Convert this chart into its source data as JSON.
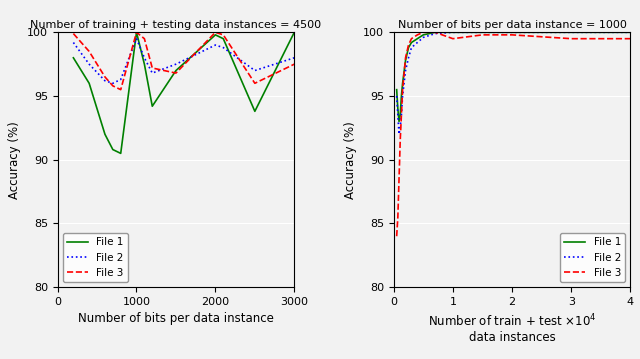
{
  "left_title": "Number of training + testing data instances = 4500",
  "right_title": "Number of bits per data instance = 1000",
  "left_xlabel": "Number of bits per data instance",
  "right_xlabel1": "Number of train + test",
  "right_xlabel2": "data instances",
  "ylabel": "Accuracy (%)",
  "ylim": [
    80,
    100
  ],
  "left_xlim": [
    0,
    3000
  ],
  "right_xlim": [
    0,
    40000
  ],
  "left_x": [
    200,
    400,
    600,
    700,
    800,
    1000,
    1100,
    1200,
    1500,
    2000,
    2100,
    2500,
    3000
  ],
  "left_file1": [
    98.0,
    96.0,
    92.0,
    90.8,
    90.5,
    100.0,
    97.5,
    94.2,
    97.0,
    99.8,
    99.5,
    93.8,
    100.0
  ],
  "left_file2": [
    99.2,
    97.5,
    96.2,
    96.0,
    96.3,
    99.5,
    98.0,
    96.8,
    97.5,
    99.0,
    98.8,
    97.0,
    98.0
  ],
  "left_file3": [
    99.9,
    98.5,
    96.5,
    95.8,
    95.5,
    100.0,
    99.5,
    97.2,
    96.8,
    100.0,
    99.8,
    96.0,
    97.5
  ],
  "right_x": [
    500,
    700,
    900,
    1100,
    1300,
    1500,
    2000,
    2500,
    3000,
    4000,
    5000,
    7000,
    10000,
    15000,
    20000,
    30000,
    40000
  ],
  "right_file1": [
    95.5,
    94.0,
    93.0,
    93.5,
    95.0,
    96.0,
    97.8,
    98.8,
    99.2,
    99.5,
    99.8,
    100.0,
    100.0,
    100.0,
    100.0,
    100.0,
    100.0
  ],
  "right_file2": [
    95.0,
    93.5,
    92.0,
    92.5,
    93.5,
    95.0,
    97.0,
    98.0,
    98.8,
    99.2,
    99.6,
    99.9,
    100.0,
    100.0,
    100.0,
    100.0,
    100.0
  ],
  "right_file3_x": [
    500,
    700,
    900,
    1100,
    1300,
    1500,
    2000,
    2500,
    3000,
    4000,
    5000,
    7000,
    10000,
    15000,
    20000,
    30000,
    40000
  ],
  "right_file3": [
    84.0,
    85.5,
    88.5,
    91.5,
    93.5,
    95.5,
    98.0,
    99.0,
    99.5,
    99.8,
    100.0,
    100.0,
    99.5,
    99.8,
    99.8,
    99.5,
    99.5
  ],
  "color_file1": "#008000",
  "color_file2": "#0000FF",
  "color_file3": "#FF0000",
  "legend_labels": [
    "File 1",
    "File 2",
    "File 3"
  ],
  "bg_color": "#F0F0F0"
}
